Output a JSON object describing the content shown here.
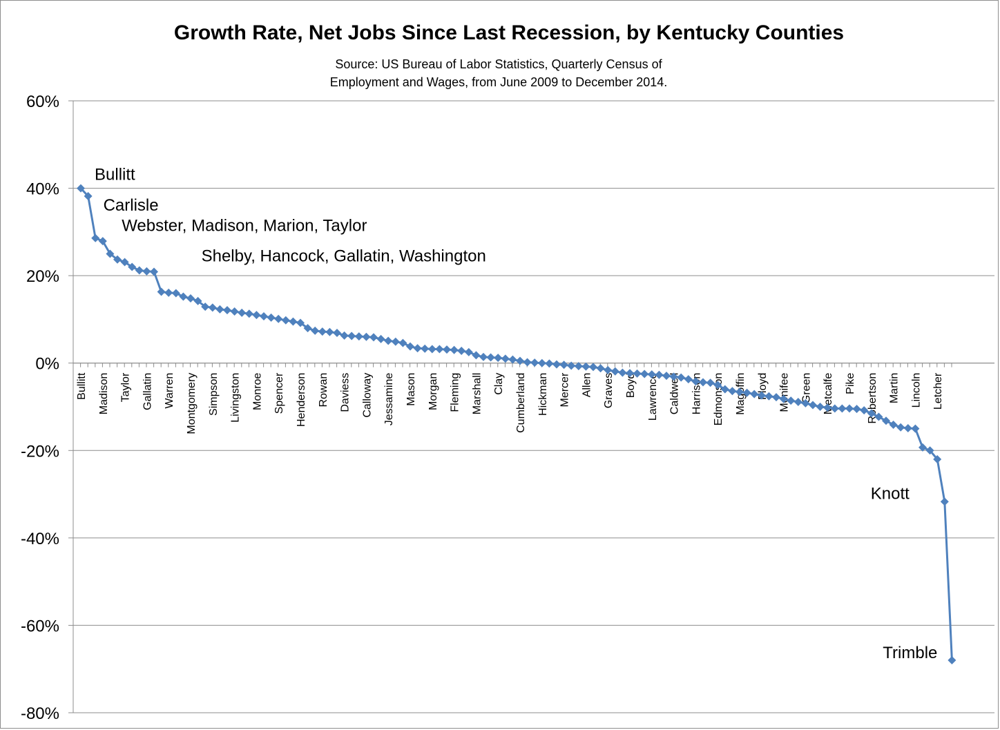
{
  "chart_data": {
    "type": "line",
    "title": "Growth Rate, Net Jobs Since Last Recession, by Kentucky Counties",
    "subtitle_lines": [
      "Source: US Bureau of Labor Statistics, Quarterly Census of",
      "Employment and Wages, from June 2009 to December 2014."
    ],
    "xlabel": "",
    "ylabel": "",
    "ylim": [
      -0.8,
      0.6
    ],
    "yticks": [
      0.6,
      0.4,
      0.2,
      0,
      -0.2,
      -0.4,
      -0.6,
      -0.8
    ],
    "ytick_labels": [
      "60%",
      "40%",
      "20%",
      "0%",
      "-20%",
      "-40%",
      "-60%",
      "-80%"
    ],
    "grid": "horizontal",
    "legend": "none",
    "marker": "diamond",
    "color": "#4f81bd",
    "x_tick_labels": [
      {
        "index": 0,
        "label": "Bullitt"
      },
      {
        "index": 3,
        "label": "Madison"
      },
      {
        "index": 6,
        "label": "Taylor"
      },
      {
        "index": 9,
        "label": "Gallatin"
      },
      {
        "index": 12,
        "label": "Warren"
      },
      {
        "index": 15,
        "label": "Montgomery"
      },
      {
        "index": 18,
        "label": "Simpson"
      },
      {
        "index": 21,
        "label": "Livingston"
      },
      {
        "index": 24,
        "label": "Monroe"
      },
      {
        "index": 27,
        "label": "Spencer"
      },
      {
        "index": 30,
        "label": "Henderson"
      },
      {
        "index": 33,
        "label": "Rowan"
      },
      {
        "index": 36,
        "label": "Daviess"
      },
      {
        "index": 39,
        "label": "Calloway"
      },
      {
        "index": 42,
        "label": "Jessamine"
      },
      {
        "index": 45,
        "label": "Mason"
      },
      {
        "index": 48,
        "label": "Morgan"
      },
      {
        "index": 51,
        "label": "Fleming"
      },
      {
        "index": 54,
        "label": "Marshall"
      },
      {
        "index": 57,
        "label": "Clay"
      },
      {
        "index": 60,
        "label": "Cumberland"
      },
      {
        "index": 63,
        "label": "Hickman"
      },
      {
        "index": 66,
        "label": "Mercer"
      },
      {
        "index": 69,
        "label": "Allen"
      },
      {
        "index": 72,
        "label": "Graves"
      },
      {
        "index": 75,
        "label": "Boyd"
      },
      {
        "index": 78,
        "label": "Lawrence"
      },
      {
        "index": 81,
        "label": "Caldwell"
      },
      {
        "index": 84,
        "label": "Harrison"
      },
      {
        "index": 87,
        "label": "Edmonson"
      },
      {
        "index": 90,
        "label": "Magoffin"
      },
      {
        "index": 93,
        "label": "Floyd"
      },
      {
        "index": 96,
        "label": "Menifee"
      },
      {
        "index": 99,
        "label": "Green"
      },
      {
        "index": 102,
        "label": "Metcalfe"
      },
      {
        "index": 105,
        "label": "Pike"
      },
      {
        "index": 108,
        "label": "Robertson"
      },
      {
        "index": 111,
        "label": "Martin"
      },
      {
        "index": 114,
        "label": "Lincoln"
      },
      {
        "index": 117,
        "label": "Letcher"
      }
    ],
    "series": [
      {
        "values": [
          0.4,
          0.382,
          0.286,
          0.279,
          0.25,
          0.237,
          0.231,
          0.22,
          0.212,
          0.21,
          0.209,
          0.163,
          0.161,
          0.16,
          0.152,
          0.148,
          0.142,
          0.129,
          0.127,
          0.123,
          0.121,
          0.118,
          0.115,
          0.113,
          0.11,
          0.107,
          0.104,
          0.101,
          0.098,
          0.095,
          0.092,
          0.08,
          0.074,
          0.072,
          0.071,
          0.069,
          0.063,
          0.062,
          0.061,
          0.06,
          0.059,
          0.055,
          0.051,
          0.049,
          0.046,
          0.038,
          0.034,
          0.033,
          0.032,
          0.032,
          0.031,
          0.03,
          0.028,
          0.025,
          0.018,
          0.014,
          0.013,
          0.012,
          0.01,
          0.008,
          0.005,
          0.002,
          0.001,
          0.0,
          -0.001,
          -0.003,
          -0.004,
          -0.006,
          -0.007,
          -0.008,
          -0.009,
          -0.012,
          -0.016,
          -0.019,
          -0.022,
          -0.023,
          -0.024,
          -0.025,
          -0.026,
          -0.027,
          -0.029,
          -0.031,
          -0.033,
          -0.037,
          -0.042,
          -0.044,
          -0.045,
          -0.05,
          -0.06,
          -0.064,
          -0.066,
          -0.068,
          -0.071,
          -0.074,
          -0.076,
          -0.078,
          -0.082,
          -0.086,
          -0.089,
          -0.092,
          -0.096,
          -0.1,
          -0.102,
          -0.104,
          -0.104,
          -0.104,
          -0.105,
          -0.108,
          -0.115,
          -0.123,
          -0.132,
          -0.141,
          -0.147,
          -0.149,
          -0.15,
          -0.193,
          -0.2,
          -0.22,
          -0.317,
          -0.68
        ]
      }
    ],
    "annotations": [
      {
        "text": "Bullitt",
        "index": 0
      },
      {
        "text": "Carlisle",
        "index": 1
      },
      {
        "text": "Webster, Madison, Marion, Taylor",
        "index": 2
      },
      {
        "text": "Shelby, Hancock, Gallatin, Washington",
        "index": 6
      },
      {
        "text": "Knott",
        "index": 118
      },
      {
        "text": "Trimble",
        "index": 119
      }
    ]
  }
}
